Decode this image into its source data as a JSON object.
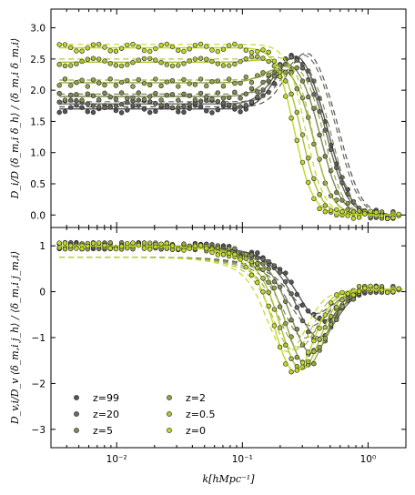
{
  "chart_data": [
    {
      "type": "scatter",
      "panel": "top",
      "xscale": "log",
      "xlim": [
        0.003,
        2.0
      ],
      "ylim": [
        -0.2,
        3.3
      ],
      "ylabel": "D_i/D ⟨δ_m,i δ_h⟩ / ⟨δ_m,i δ_m,i⟩",
      "yticks": [
        "0.0",
        "0.5",
        "1.0",
        "1.5",
        "2.0",
        "2.5",
        "3.0"
      ],
      "ytick_values": [
        0,
        0.5,
        1.0,
        1.5,
        2.0,
        2.5,
        3.0
      ],
      "xticks": [
        "",
        "",
        ""
      ],
      "series": [
        {
          "name": "z=99",
          "color": "#555555",
          "plateau": 1.7,
          "peak_k": 0.27,
          "peak": 2.58,
          "drop_k": 0.55
        },
        {
          "name": "z=20",
          "color": "#6a6a5e",
          "plateau": 1.78,
          "peak_k": 0.26,
          "peak": 2.55,
          "drop_k": 0.52
        },
        {
          "name": "z=5",
          "color": "#7f8a55",
          "plateau": 1.9,
          "peak_k": 0.24,
          "peak": 2.45,
          "drop_k": 0.45
        },
        {
          "name": "z=2",
          "color": "#94a745",
          "plateau": 2.12,
          "peak_k": 0.22,
          "peak": 2.4,
          "drop_k": 0.38
        },
        {
          "name": "z=0.5",
          "color": "#aec236",
          "plateau": 2.45,
          "peak_k": 0.2,
          "peak": 2.55,
          "drop_k": 0.3
        },
        {
          "name": "z=0",
          "color": "#c2d822",
          "plateau": 2.68,
          "peak_k": 0.18,
          "peak": 2.7,
          "drop_k": 0.26
        }
      ]
    },
    {
      "type": "scatter",
      "panel": "bottom",
      "xscale": "log",
      "xlim": [
        0.003,
        2.0
      ],
      "ylim": [
        -3.4,
        1.4
      ],
      "xlabel": "k[hMpc⁻¹]",
      "ylabel": "D_v,i/D_v ⟨δ_m,i j_h⟩ / ⟨δ_m,i j_m,i⟩",
      "yticks": [
        "1",
        "0",
        "−1",
        "−2",
        "−3"
      ],
      "ytick_values": [
        1,
        0,
        -1,
        -2,
        -3
      ],
      "xticks": [
        "10⁻²",
        "10⁻¹",
        "10⁰"
      ],
      "xtick_values": [
        0.01,
        0.1,
        1.0
      ],
      "series": [
        {
          "name": "z=99",
          "color": "#555555",
          "min_k": 0.4,
          "min": -0.9
        },
        {
          "name": "z=20",
          "color": "#6a6a5e",
          "min_k": 0.38,
          "min": -1.3
        },
        {
          "name": "z=5",
          "color": "#7f8a55",
          "min_k": 0.34,
          "min": -1.7
        },
        {
          "name": "z=2",
          "color": "#94a745",
          "min_k": 0.31,
          "min": -2.0
        },
        {
          "name": "z=0.5",
          "color": "#aec236",
          "min_k": 0.28,
          "min": -2.1
        },
        {
          "name": "z=0",
          "color": "#c2d822",
          "min_k": 0.25,
          "min": -2.15
        }
      ],
      "legend": {
        "placement": "lower-left",
        "columns": [
          [
            "z=99",
            "z=20",
            "z=5"
          ],
          [
            "z=2",
            "z=0.5",
            "z=0"
          ]
        ]
      }
    }
  ]
}
